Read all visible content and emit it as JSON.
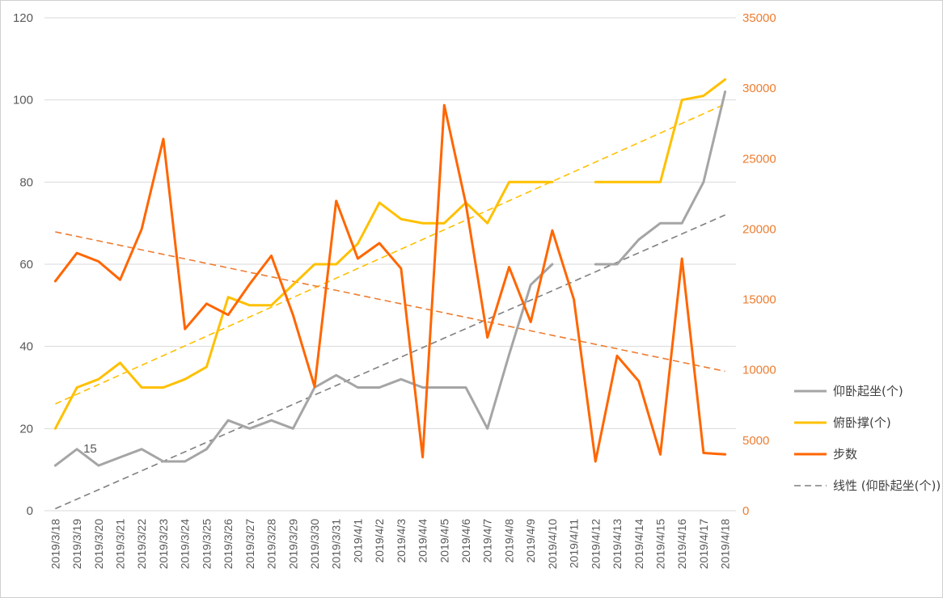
{
  "chart_data": {
    "type": "line",
    "title": "",
    "categories": [
      "2019/3/18",
      "2019/3/19",
      "2019/3/20",
      "2019/3/21",
      "2019/3/22",
      "2019/3/23",
      "2019/3/24",
      "2019/3/25",
      "2019/3/26",
      "2019/3/27",
      "2019/3/28",
      "2019/3/29",
      "2019/3/30",
      "2019/3/31",
      "2019/4/1",
      "2019/4/2",
      "2019/4/3",
      "2019/4/4",
      "2019/4/5",
      "2019/4/6",
      "2019/4/7",
      "2019/4/8",
      "2019/4/9",
      "2019/4/10",
      "2019/4/11",
      "2019/4/12",
      "2019/4/13",
      "2019/4/14",
      "2019/4/15",
      "2019/4/16",
      "2019/4/17",
      "2019/4/18"
    ],
    "y_left": {
      "min": 0,
      "max": 120,
      "ticks": [
        "0",
        "20",
        "40",
        "60",
        "80",
        "100",
        "120"
      ]
    },
    "y_right": {
      "min": 0,
      "max": 35000,
      "ticks": [
        "0",
        "5000",
        "10000",
        "15000",
        "20000",
        "25000",
        "30000",
        "35000"
      ]
    },
    "grid": "horizontal",
    "legend_position": "right",
    "series": [
      {
        "name": "仰卧起坐(个)",
        "axis": "left",
        "color": "#a5a5a5",
        "values": [
          11,
          15,
          11,
          13,
          15,
          12,
          12,
          15,
          22,
          20,
          22,
          20,
          30,
          33,
          30,
          30,
          32,
          30,
          30,
          30,
          20,
          38,
          55,
          60,
          null,
          60,
          60,
          66,
          70,
          70,
          80,
          102
        ]
      },
      {
        "name": "俯卧撑(个)",
        "axis": "left",
        "color": "#ffc000",
        "values": [
          20,
          30,
          32,
          36,
          30,
          30,
          32,
          35,
          52,
          50,
          50,
          55,
          60,
          60,
          65,
          75,
          71,
          70,
          70,
          75,
          70,
          80,
          80,
          80,
          null,
          80,
          80,
          80,
          80,
          100,
          101,
          105
        ]
      },
      {
        "name": "步数",
        "axis": "right",
        "color": "#ff6600",
        "values": [
          16300,
          18300,
          17700,
          16400,
          20000,
          26400,
          12900,
          14700,
          13900,
          16100,
          18100,
          13900,
          8800,
          22000,
          17900,
          19000,
          17200,
          3800,
          28800,
          21800,
          12300,
          17300,
          13400,
          19900,
          15000,
          3500,
          11000,
          9200,
          4000,
          17900,
          4100,
          4000
        ]
      }
    ],
    "trendlines": [
      {
        "name": "线性 (仰卧起坐(个))",
        "color": "#7f7f7f",
        "axis": "left",
        "start": 0.5,
        "end": 72,
        "legend_label": "线性 (仰卧起坐(个))"
      },
      {
        "name": "",
        "color": "#ffc000",
        "axis": "left",
        "start": 26,
        "end": 99
      },
      {
        "name": "",
        "color": "#ed7d31",
        "axis": "right",
        "start": 19800,
        "end": 9900
      }
    ],
    "annotations": [
      {
        "series": "仰卧起坐(个)",
        "category": "2019/3/19",
        "text": "15"
      }
    ]
  }
}
